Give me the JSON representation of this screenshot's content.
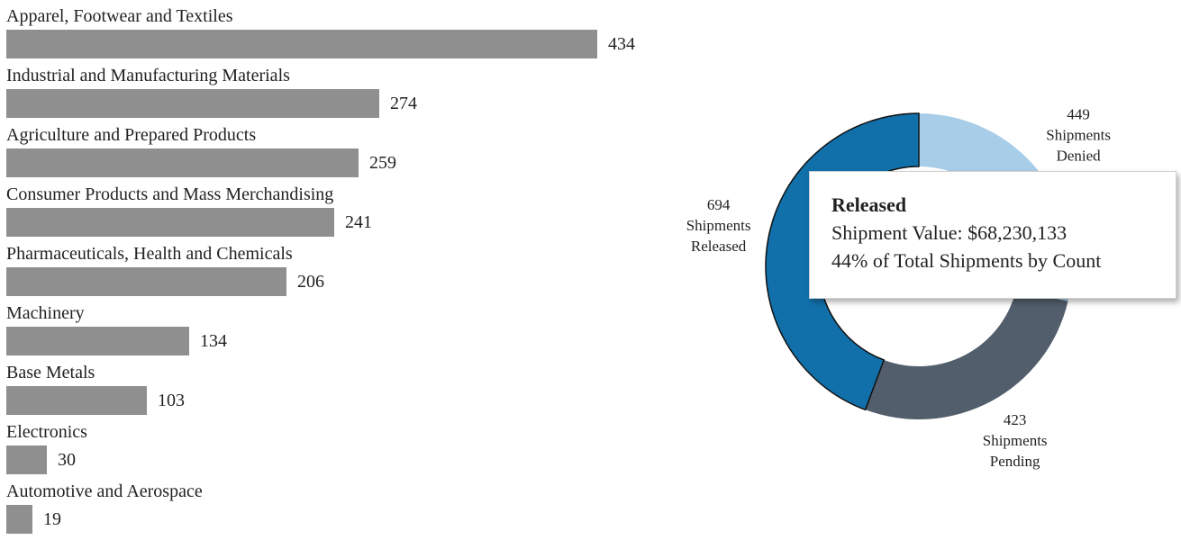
{
  "chart_data": [
    {
      "type": "bar",
      "orientation": "horizontal",
      "categories": [
        "Apparel, Footwear and Textiles",
        "Industrial and Manufacturing Materials",
        "Agriculture and Prepared Products",
        "Consumer Products and Mass Merchandising",
        "Pharmaceuticals, Health and Chemicals",
        "Machinery",
        "Base Metals",
        "Electronics",
        "Automotive and Aerospace"
      ],
      "values": [
        434,
        274,
        259,
        241,
        206,
        134,
        103,
        30,
        19
      ],
      "bar_color": "#8f8f8f",
      "grid": false
    },
    {
      "type": "pie",
      "variant": "donut",
      "slices": [
        {
          "value": 449,
          "label_lines": [
            "449",
            "Shipments",
            "Denied"
          ],
          "color": "#a8cde8"
        },
        {
          "value": 423,
          "label_lines": [
            "423",
            "Shipments",
            "Pending"
          ],
          "color": "#525e6b"
        },
        {
          "value": 694,
          "label_lines": [
            "694",
            "Shipments",
            "Released"
          ],
          "color": "#1170aa"
        }
      ],
      "highlighted": "Released"
    }
  ],
  "tooltip": {
    "title": "Released",
    "value_line": "Shipment Value: $68,230,133",
    "share_line": "44% of Total Shipments by Count"
  }
}
